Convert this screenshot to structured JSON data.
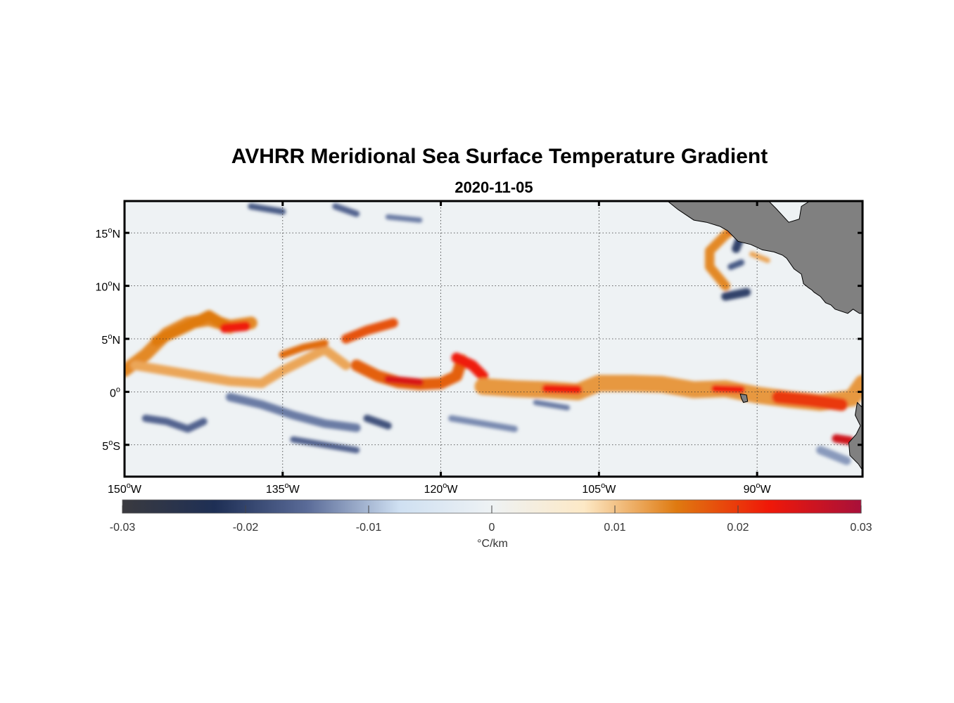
{
  "title": "AVHRR Meridional Sea Surface Temperature Gradient",
  "subtitle": "2020-11-05",
  "map": {
    "lon_range": [
      -150,
      -80
    ],
    "lat_range": [
      -8,
      18
    ],
    "lon_ticks": [
      {
        "value": -150,
        "num": "150",
        "hem": "W"
      },
      {
        "value": -135,
        "num": "135",
        "hem": "W"
      },
      {
        "value": -120,
        "num": "120",
        "hem": "W"
      },
      {
        "value": -105,
        "num": "105",
        "hem": "W"
      },
      {
        "value": -90,
        "num": "90",
        "hem": "W"
      }
    ],
    "lat_ticks": [
      {
        "value": 15,
        "num": "15",
        "hem": "N"
      },
      {
        "value": 10,
        "num": "10",
        "hem": "N"
      },
      {
        "value": 5,
        "num": "5",
        "hem": "N"
      },
      {
        "value": 0,
        "num": "0",
        "hem": ""
      },
      {
        "value": -5,
        "num": "5",
        "hem": "S"
      }
    ],
    "grid": true,
    "land_color": "#808080",
    "land": [
      [
        [
          -98.5,
          18
        ],
        [
          -97.5,
          17.2
        ],
        [
          -96,
          16.2
        ],
        [
          -94.8,
          16
        ],
        [
          -93.5,
          15.6
        ],
        [
          -92.8,
          15.2
        ],
        [
          -91.8,
          14.2
        ],
        [
          -90.6,
          13.9
        ],
        [
          -89.5,
          13.4
        ],
        [
          -88.4,
          13.2
        ],
        [
          -87.6,
          12.9
        ],
        [
          -87.2,
          12.6
        ],
        [
          -86.5,
          11.6
        ],
        [
          -85.8,
          11.1
        ],
        [
          -85.6,
          10.2
        ],
        [
          -85.1,
          9.8
        ],
        [
          -84.8,
          9.6
        ],
        [
          -84.6,
          9.4
        ],
        [
          -84.0,
          9.0
        ],
        [
          -83.5,
          8.4
        ],
        [
          -83.0,
          8.2
        ],
        [
          -82.6,
          7.8
        ],
        [
          -81.4,
          7.4
        ],
        [
          -80.9,
          7.8
        ],
        [
          -80.3,
          7.4
        ],
        [
          -80,
          7.4
        ],
        [
          -80,
          18
        ],
        [
          -85,
          18
        ],
        [
          -85.8,
          17.5
        ],
        [
          -86.0,
          16.3
        ],
        [
          -87.0,
          16.0
        ],
        [
          -88.2,
          17.3
        ],
        [
          -88.9,
          18
        ]
      ],
      [
        [
          -80,
          -1.5
        ],
        [
          -80.5,
          -1.0
        ],
        [
          -80.7,
          -2.2
        ],
        [
          -80.2,
          -3.2
        ],
        [
          -80.6,
          -4.0
        ],
        [
          -81.3,
          -4.8
        ],
        [
          -81.2,
          -6.0
        ],
        [
          -80.4,
          -6.8
        ],
        [
          -80,
          -7.4
        ]
      ]
    ],
    "islands": [
      [
        [
          -91.6,
          -0.2
        ],
        [
          -91.0,
          -0.3
        ],
        [
          -90.9,
          -0.9
        ],
        [
          -91.3,
          -1.0
        ],
        [
          -91.5,
          -0.6
        ]
      ]
    ]
  },
  "colorbar": {
    "label": "°C/km",
    "range": [
      -0.03,
      0.03
    ],
    "ticks": [
      {
        "value": -0.03,
        "label": "-0.03"
      },
      {
        "value": -0.02,
        "label": "-0.02"
      },
      {
        "value": -0.01,
        "label": "-0.01"
      },
      {
        "value": 0,
        "label": "0"
      },
      {
        "value": 0.01,
        "label": "0.01"
      },
      {
        "value": 0.02,
        "label": "0.02"
      },
      {
        "value": 0.03,
        "label": "0.03"
      }
    ],
    "colors": [
      "#3a3a3f",
      "#1e2f55",
      "#5a6b98",
      "#cfe0f2",
      "#eef2f4",
      "#fde9c6",
      "#df7a10",
      "#f01808",
      "#a8103a"
    ]
  },
  "chart_data": {
    "type": "heatmap",
    "title": "AVHRR Meridional Sea Surface Temperature Gradient",
    "subtitle": "2020-11-05",
    "xlim": [
      -150,
      -80
    ],
    "ylim": [
      -8,
      18
    ],
    "colorbar_label": "°C/km",
    "zlim": [
      -0.03,
      0.03
    ],
    "features": [
      {
        "value": 0.014,
        "points": [
          [
            -150,
            2
          ],
          [
            -148,
            3.5
          ],
          [
            -146,
            5.5
          ],
          [
            -144,
            6.5
          ],
          [
            -142,
            6.8
          ],
          [
            -140,
            6.2
          ],
          [
            -138,
            6.5
          ]
        ],
        "width": 1.2
      },
      {
        "value": 0.015,
        "points": [
          [
            -147,
            4.8
          ],
          [
            -144,
            6.2
          ],
          [
            -142,
            7.2
          ],
          [
            -140,
            6.0
          ]
        ],
        "width": 1.0
      },
      {
        "value": 0.022,
        "points": [
          [
            -140.5,
            6.0
          ],
          [
            -138.5,
            6.2
          ]
        ],
        "width": 0.9
      },
      {
        "value": 0.012,
        "points": [
          [
            -149,
            2.5
          ],
          [
            -146,
            2.0
          ],
          [
            -143,
            1.5
          ],
          [
            -140,
            1.0
          ],
          [
            -137,
            0.8
          ],
          [
            -135,
            2.0
          ],
          [
            -133,
            3.0
          ],
          [
            -131,
            4.0
          ],
          [
            -129,
            2.5
          ]
        ],
        "width": 0.9
      },
      {
        "value": 0.016,
        "points": [
          [
            -135,
            3.5
          ],
          [
            -133,
            4.2
          ],
          [
            -131,
            4.6
          ]
        ],
        "width": 0.7
      },
      {
        "value": 0.017,
        "points": [
          [
            -128,
            2.5
          ],
          [
            -126,
            1.5
          ],
          [
            -124,
            0.9
          ],
          [
            -122,
            0.7
          ],
          [
            -120,
            0.8
          ],
          [
            -118.5,
            1.5
          ],
          [
            -118,
            3.0
          ]
        ],
        "width": 1.1
      },
      {
        "value": 0.025,
        "points": [
          [
            -125,
            1.2
          ],
          [
            -122,
            0.9
          ]
        ],
        "width": 0.7
      },
      {
        "value": 0.018,
        "points": [
          [
            -129,
            5.0
          ],
          [
            -127,
            5.8
          ],
          [
            -124.5,
            6.5
          ]
        ],
        "width": 0.9
      },
      {
        "value": 0.022,
        "points": [
          [
            -118.5,
            3.2
          ],
          [
            -117,
            2.5
          ],
          [
            -116,
            1.5
          ]
        ],
        "width": 1.0
      },
      {
        "value": 0.013,
        "points": [
          [
            -116,
            0.5
          ],
          [
            -113,
            0.3
          ],
          [
            -110,
            0.2
          ],
          [
            -107,
            0.0
          ],
          [
            -105,
            0.8
          ],
          [
            -102,
            0.8
          ],
          [
            -99,
            0.7
          ],
          [
            -96,
            0.2
          ],
          [
            -93,
            0.3
          ],
          [
            -90,
            -0.3
          ],
          [
            -87,
            -0.7
          ],
          [
            -84,
            -1.0
          ],
          [
            -81,
            -0.6
          ],
          [
            -80,
            0.8
          ]
        ],
        "width": 1.6
      },
      {
        "value": 0.022,
        "points": [
          [
            -110,
            0.3
          ],
          [
            -107,
            0.2
          ]
        ],
        "width": 0.8
      },
      {
        "value": 0.022,
        "points": [
          [
            -94,
            0.3
          ],
          [
            -91.5,
            0.2
          ]
        ],
        "width": 0.7
      },
      {
        "value": 0.02,
        "points": [
          [
            -88,
            -0.5
          ],
          [
            -85,
            -0.8
          ],
          [
            -82,
            -1.2
          ]
        ],
        "width": 1.2
      },
      {
        "value": 0.014,
        "points": [
          [
            -93,
            10.0
          ],
          [
            -94.5,
            11.8
          ],
          [
            -94.5,
            13.3
          ],
          [
            -93.0,
            14.8
          ],
          [
            -92.0,
            15.5
          ]
        ],
        "width": 0.9
      },
      {
        "value": 0.025,
        "points": [
          [
            -92.5,
            15.2
          ],
          [
            -91.5,
            15.6
          ]
        ],
        "width": 0.6
      },
      {
        "value": 0.012,
        "points": [
          [
            -90.5,
            13.0
          ],
          [
            -89.0,
            12.4
          ]
        ],
        "width": 0.5
      },
      {
        "value": 0.026,
        "points": [
          [
            -82.5,
            -4.4
          ],
          [
            -81.2,
            -4.6
          ]
        ],
        "width": 0.8
      },
      {
        "value": -0.016,
        "points": [
          [
            -148,
            -2.5
          ],
          [
            -146,
            -2.8
          ],
          [
            -144,
            -3.5
          ],
          [
            -142.5,
            -2.8
          ]
        ],
        "width": 0.7
      },
      {
        "value": -0.014,
        "points": [
          [
            -140,
            -0.5
          ],
          [
            -137,
            -1.2
          ],
          [
            -134,
            -2.2
          ],
          [
            -131,
            -3.0
          ],
          [
            -128,
            -3.4
          ]
        ],
        "width": 0.8
      },
      {
        "value": -0.016,
        "points": [
          [
            -134,
            -4.5
          ],
          [
            -131,
            -5.0
          ],
          [
            -128,
            -5.5
          ]
        ],
        "width": 0.6
      },
      {
        "value": -0.018,
        "points": [
          [
            -127,
            -2.5
          ],
          [
            -125,
            -3.2
          ]
        ],
        "width": 0.7
      },
      {
        "value": -0.013,
        "points": [
          [
            -119,
            -2.5
          ],
          [
            -116,
            -3.0
          ],
          [
            -113,
            -3.5
          ]
        ],
        "width": 0.6
      },
      {
        "value": -0.014,
        "points": [
          [
            -111,
            -1.0
          ],
          [
            -108,
            -1.5
          ]
        ],
        "width": 0.5
      },
      {
        "value": -0.02,
        "points": [
          [
            -93,
            9.0
          ],
          [
            -91,
            9.4
          ]
        ],
        "width": 0.8
      },
      {
        "value": -0.02,
        "points": [
          [
            -92,
            13.5
          ],
          [
            -91.5,
            14.8
          ]
        ],
        "width": 0.8
      },
      {
        "value": -0.017,
        "points": [
          [
            -92.5,
            11.8
          ],
          [
            -91.5,
            12.2
          ]
        ],
        "width": 0.6
      },
      {
        "value": -0.017,
        "points": [
          [
            -138,
            17.5
          ],
          [
            -135,
            17.0
          ]
        ],
        "width": 0.6
      },
      {
        "value": -0.016,
        "points": [
          [
            -130,
            17.5
          ],
          [
            -128,
            16.8
          ]
        ],
        "width": 0.6
      },
      {
        "value": -0.014,
        "points": [
          [
            -125,
            16.5
          ],
          [
            -122,
            16.2
          ]
        ],
        "width": 0.5
      },
      {
        "value": -0.012,
        "points": [
          [
            -84,
            -5.5
          ],
          [
            -81.5,
            -6.5
          ]
        ],
        "width": 0.8
      }
    ]
  }
}
